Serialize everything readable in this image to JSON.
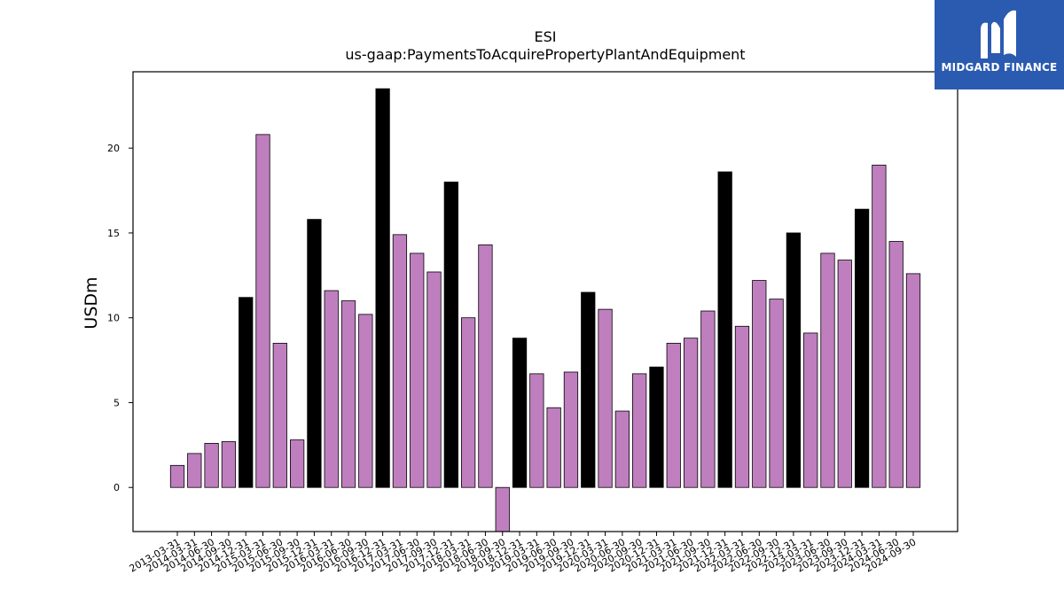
{
  "chart_data": {
    "type": "bar",
    "title": "ESI",
    "subtitle": "us-gaap:PaymentsToAcquirePropertyPlantAndEquipment",
    "xlabel": "",
    "ylabel": "USDm",
    "ylim": [
      -2.6,
      24.5
    ],
    "yticks": [
      0,
      5,
      10,
      15,
      20
    ],
    "grid": false,
    "colors": {
      "quarter": "#bf7fbf",
      "annual": "#000000",
      "edge": "#000000"
    },
    "categories": [
      "2013-03-31",
      "2014-03-31",
      "2014-06-30",
      "2014-09-30",
      "2014-12-31",
      "2015-03-31",
      "2015-06-30",
      "2015-09-30",
      "2015-12-31",
      "2016-03-31",
      "2016-06-30",
      "2016-09-30",
      "2016-12-31",
      "2017-03-31",
      "2017-06-30",
      "2017-09-30",
      "2017-12-31",
      "2018-03-31",
      "2018-06-30",
      "2018-09-30",
      "2018-12-31",
      "2019-03-31",
      "2019-06-30",
      "2019-09-30",
      "2019-12-31",
      "2020-03-31",
      "2020-06-30",
      "2020-09-30",
      "2020-12-31",
      "2021-03-31",
      "2021-06-30",
      "2021-09-30",
      "2021-12-31",
      "2022-03-31",
      "2022-06-30",
      "2022-09-30",
      "2022-12-31",
      "2023-03-31",
      "2023-06-30",
      "2023-09-30",
      "2023-12-31",
      "2024-03-31",
      "2024-06-30",
      "2024-09-30"
    ],
    "values": [
      1.3,
      2.0,
      2.6,
      2.7,
      11.2,
      20.8,
      8.5,
      2.8,
      15.8,
      11.6,
      11.0,
      10.2,
      23.5,
      14.9,
      13.8,
      12.7,
      18.0,
      10.0,
      14.3,
      -2.9,
      8.8,
      6.7,
      4.7,
      6.8,
      11.5,
      10.5,
      4.5,
      6.7,
      7.1,
      8.5,
      8.8,
      10.4,
      18.6,
      9.5,
      12.2,
      11.1,
      15.0,
      9.1,
      13.8,
      13.4,
      16.4,
      19.0,
      14.5,
      12.6
    ],
    "annual_flags": [
      false,
      false,
      false,
      false,
      true,
      false,
      false,
      false,
      true,
      false,
      false,
      false,
      true,
      false,
      false,
      false,
      true,
      false,
      false,
      false,
      true,
      false,
      false,
      false,
      true,
      false,
      false,
      false,
      true,
      false,
      false,
      false,
      true,
      false,
      false,
      false,
      true,
      false,
      false,
      false,
      true,
      false,
      false,
      false
    ]
  },
  "logo": {
    "text": "MIDGARD FINANCE",
    "icon": "midgard-m-icon"
  }
}
